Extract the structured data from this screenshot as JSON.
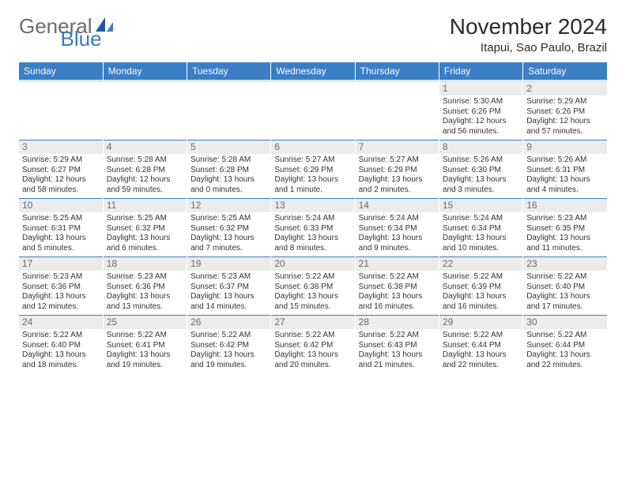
{
  "logo": {
    "part1": "General",
    "part2": "Blue"
  },
  "title": "November 2024",
  "location": "Itapui, Sao Paulo, Brazil",
  "weekdays": [
    "Sunday",
    "Monday",
    "Tuesday",
    "Wednesday",
    "Thursday",
    "Friday",
    "Saturday"
  ],
  "colors": {
    "header_bg": "#3a7ec4",
    "header_text": "#ffffff",
    "daynum_bg": "#ececec",
    "daynum_text": "#6a6a6a",
    "body_text": "#333333",
    "separator": "#3a7ec4",
    "logo_gray": "#6b6b6b",
    "logo_blue": "#3a7abf",
    "background": "#ffffff"
  },
  "weeks": [
    [
      {
        "day": "",
        "sunrise": "",
        "sunset": "",
        "daylight": ""
      },
      {
        "day": "",
        "sunrise": "",
        "sunset": "",
        "daylight": ""
      },
      {
        "day": "",
        "sunrise": "",
        "sunset": "",
        "daylight": ""
      },
      {
        "day": "",
        "sunrise": "",
        "sunset": "",
        "daylight": ""
      },
      {
        "day": "",
        "sunrise": "",
        "sunset": "",
        "daylight": ""
      },
      {
        "day": "1",
        "sunrise": "Sunrise: 5:30 AM",
        "sunset": "Sunset: 6:26 PM",
        "daylight": "Daylight: 12 hours and 56 minutes."
      },
      {
        "day": "2",
        "sunrise": "Sunrise: 5:29 AM",
        "sunset": "Sunset: 6:26 PM",
        "daylight": "Daylight: 12 hours and 57 minutes."
      }
    ],
    [
      {
        "day": "3",
        "sunrise": "Sunrise: 5:29 AM",
        "sunset": "Sunset: 6:27 PM",
        "daylight": "Daylight: 12 hours and 58 minutes."
      },
      {
        "day": "4",
        "sunrise": "Sunrise: 5:28 AM",
        "sunset": "Sunset: 6:28 PM",
        "daylight": "Daylight: 12 hours and 59 minutes."
      },
      {
        "day": "5",
        "sunrise": "Sunrise: 5:28 AM",
        "sunset": "Sunset: 6:28 PM",
        "daylight": "Daylight: 13 hours and 0 minutes."
      },
      {
        "day": "6",
        "sunrise": "Sunrise: 5:27 AM",
        "sunset": "Sunset: 6:29 PM",
        "daylight": "Daylight: 13 hours and 1 minute."
      },
      {
        "day": "7",
        "sunrise": "Sunrise: 5:27 AM",
        "sunset": "Sunset: 6:29 PM",
        "daylight": "Daylight: 13 hours and 2 minutes."
      },
      {
        "day": "8",
        "sunrise": "Sunrise: 5:26 AM",
        "sunset": "Sunset: 6:30 PM",
        "daylight": "Daylight: 13 hours and 3 minutes."
      },
      {
        "day": "9",
        "sunrise": "Sunrise: 5:26 AM",
        "sunset": "Sunset: 6:31 PM",
        "daylight": "Daylight: 13 hours and 4 minutes."
      }
    ],
    [
      {
        "day": "10",
        "sunrise": "Sunrise: 5:25 AM",
        "sunset": "Sunset: 6:31 PM",
        "daylight": "Daylight: 13 hours and 5 minutes."
      },
      {
        "day": "11",
        "sunrise": "Sunrise: 5:25 AM",
        "sunset": "Sunset: 6:32 PM",
        "daylight": "Daylight: 13 hours and 6 minutes."
      },
      {
        "day": "12",
        "sunrise": "Sunrise: 5:25 AM",
        "sunset": "Sunset: 6:32 PM",
        "daylight": "Daylight: 13 hours and 7 minutes."
      },
      {
        "day": "13",
        "sunrise": "Sunrise: 5:24 AM",
        "sunset": "Sunset: 6:33 PM",
        "daylight": "Daylight: 13 hours and 8 minutes."
      },
      {
        "day": "14",
        "sunrise": "Sunrise: 5:24 AM",
        "sunset": "Sunset: 6:34 PM",
        "daylight": "Daylight: 13 hours and 9 minutes."
      },
      {
        "day": "15",
        "sunrise": "Sunrise: 5:24 AM",
        "sunset": "Sunset: 6:34 PM",
        "daylight": "Daylight: 13 hours and 10 minutes."
      },
      {
        "day": "16",
        "sunrise": "Sunrise: 5:23 AM",
        "sunset": "Sunset: 6:35 PM",
        "daylight": "Daylight: 13 hours and 11 minutes."
      }
    ],
    [
      {
        "day": "17",
        "sunrise": "Sunrise: 5:23 AM",
        "sunset": "Sunset: 6:36 PM",
        "daylight": "Daylight: 13 hours and 12 minutes."
      },
      {
        "day": "18",
        "sunrise": "Sunrise: 5:23 AM",
        "sunset": "Sunset: 6:36 PM",
        "daylight": "Daylight: 13 hours and 13 minutes."
      },
      {
        "day": "19",
        "sunrise": "Sunrise: 5:23 AM",
        "sunset": "Sunset: 6:37 PM",
        "daylight": "Daylight: 13 hours and 14 minutes."
      },
      {
        "day": "20",
        "sunrise": "Sunrise: 5:22 AM",
        "sunset": "Sunset: 6:38 PM",
        "daylight": "Daylight: 13 hours and 15 minutes."
      },
      {
        "day": "21",
        "sunrise": "Sunrise: 5:22 AM",
        "sunset": "Sunset: 6:38 PM",
        "daylight": "Daylight: 13 hours and 16 minutes."
      },
      {
        "day": "22",
        "sunrise": "Sunrise: 5:22 AM",
        "sunset": "Sunset: 6:39 PM",
        "daylight": "Daylight: 13 hours and 16 minutes."
      },
      {
        "day": "23",
        "sunrise": "Sunrise: 5:22 AM",
        "sunset": "Sunset: 6:40 PM",
        "daylight": "Daylight: 13 hours and 17 minutes."
      }
    ],
    [
      {
        "day": "24",
        "sunrise": "Sunrise: 5:22 AM",
        "sunset": "Sunset: 6:40 PM",
        "daylight": "Daylight: 13 hours and 18 minutes."
      },
      {
        "day": "25",
        "sunrise": "Sunrise: 5:22 AM",
        "sunset": "Sunset: 6:41 PM",
        "daylight": "Daylight: 13 hours and 19 minutes."
      },
      {
        "day": "26",
        "sunrise": "Sunrise: 5:22 AM",
        "sunset": "Sunset: 6:42 PM",
        "daylight": "Daylight: 13 hours and 19 minutes."
      },
      {
        "day": "27",
        "sunrise": "Sunrise: 5:22 AM",
        "sunset": "Sunset: 6:42 PM",
        "daylight": "Daylight: 13 hours and 20 minutes."
      },
      {
        "day": "28",
        "sunrise": "Sunrise: 5:22 AM",
        "sunset": "Sunset: 6:43 PM",
        "daylight": "Daylight: 13 hours and 21 minutes."
      },
      {
        "day": "29",
        "sunrise": "Sunrise: 5:22 AM",
        "sunset": "Sunset: 6:44 PM",
        "daylight": "Daylight: 13 hours and 22 minutes."
      },
      {
        "day": "30",
        "sunrise": "Sunrise: 5:22 AM",
        "sunset": "Sunset: 6:44 PM",
        "daylight": "Daylight: 13 hours and 22 minutes."
      }
    ]
  ]
}
